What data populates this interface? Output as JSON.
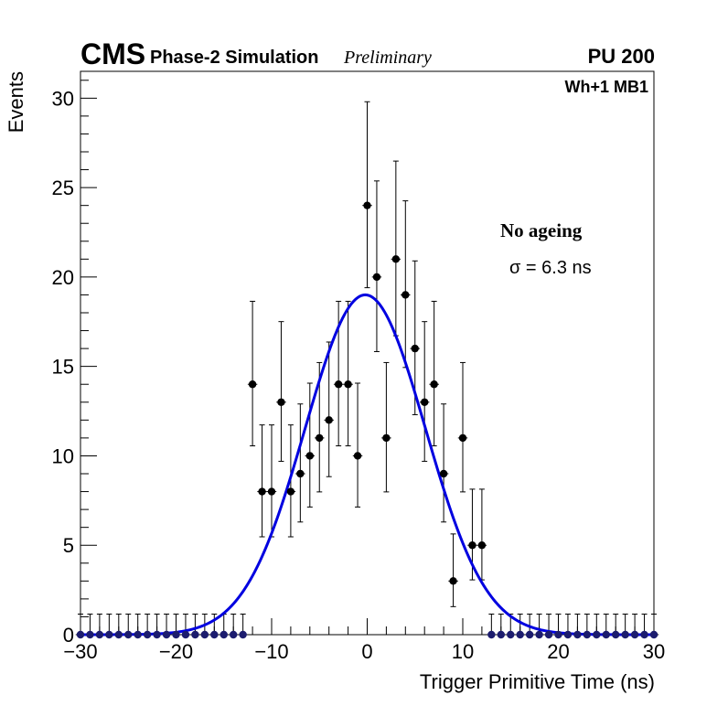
{
  "chart_data": {
    "type": "scatter",
    "experiment_label": "CMS",
    "subtitle": "Phase-2 Simulation",
    "status_label": "Preliminary",
    "pileup_label": "PU 200",
    "station_label": "Wh+1 MB1",
    "annotation_title": "No ageing",
    "annotation_sigma": "σ = 6.3 ns",
    "xlabel": "Trigger Primitive Time (ns)",
    "ylabel": "Events",
    "xlim": [
      -30,
      30
    ],
    "ylim": [
      0,
      31.5
    ],
    "x_ticks": [
      -30,
      -20,
      -10,
      0,
      10,
      20,
      30
    ],
    "x_tick_labels": [
      "−30",
      "−20",
      "−10",
      "0",
      "10",
      "20",
      "30"
    ],
    "y_ticks": [
      0,
      5,
      10,
      15,
      20,
      25,
      30
    ],
    "y_tick_labels": [
      "0",
      "5",
      "10",
      "15",
      "20",
      "25",
      "30"
    ],
    "marker_color": "#000000",
    "fit_color": "#0000e0",
    "zero_marker_color": "#1c1c6e",
    "x": [
      -30,
      -29,
      -28,
      -27,
      -26,
      -25,
      -24,
      -23,
      -22,
      -21,
      -20,
      -19,
      -18,
      -17,
      -16,
      -15,
      -14,
      -13,
      -12,
      -11,
      -10,
      -9,
      -8,
      -7,
      -6,
      -5,
      -4,
      -3,
      -2,
      -1,
      0,
      1,
      2,
      3,
      4,
      5,
      6,
      7,
      8,
      9,
      10,
      11,
      12,
      13,
      14,
      15,
      16,
      17,
      18,
      19,
      20,
      21,
      22,
      23,
      24,
      25,
      26,
      27,
      28,
      29,
      30
    ],
    "values": [
      0,
      0,
      0,
      0,
      0,
      0,
      0,
      0,
      0,
      0,
      0,
      0,
      0,
      0,
      0,
      0,
      0,
      0,
      14,
      8,
      8,
      13,
      8,
      9,
      10,
      11,
      12,
      14,
      14,
      10,
      24,
      20,
      11,
      21,
      19,
      16,
      13,
      14,
      9,
      3,
      11,
      5,
      5,
      0,
      0,
      0,
      0,
      0,
      0,
      0,
      0,
      0,
      0,
      0,
      0,
      0,
      0,
      0,
      0,
      0,
      0
    ],
    "fit": {
      "function": "gaussian",
      "amplitude": 19.0,
      "mean": -0.2,
      "sigma": 6.3,
      "range": [
        -30,
        30
      ]
    }
  }
}
